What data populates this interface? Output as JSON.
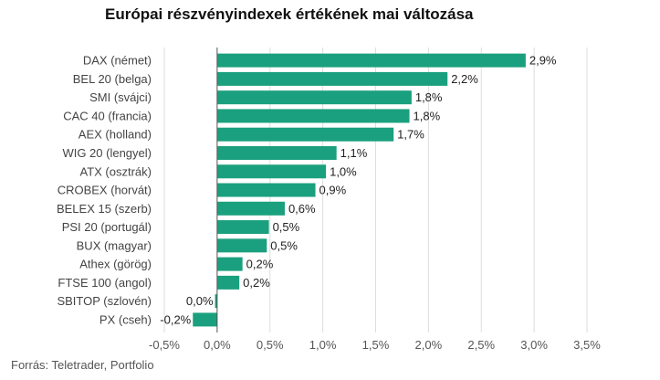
{
  "chart_data": {
    "type": "bar",
    "orientation": "horizontal",
    "title": "Európai részvényindexek értékének mai változása",
    "source": "Forrás: Teletrader, Portfolio",
    "categories": [
      "DAX (német)",
      "BEL 20 (belga)",
      "SMI (svájci)",
      "CAC 40 (francia)",
      "AEX (holland)",
      "WIG 20 (lengyel)",
      "ATX (osztrák)",
      "CROBEX (horvát)",
      "BELEX 15 (szerb)",
      "PSI 20 (portugál)",
      "BUX (magyar)",
      "Athex (görög)",
      "FTSE 100 (angol)",
      "SBITOP (szlovén)",
      "PX (cseh)"
    ],
    "values": [
      2.92,
      2.18,
      1.84,
      1.82,
      1.67,
      1.13,
      1.03,
      0.93,
      0.64,
      0.49,
      0.47,
      0.24,
      0.21,
      -0.02,
      -0.23
    ],
    "data_labels": [
      "2,9%",
      "2,2%",
      "1,8%",
      "1,8%",
      "1,7%",
      "1,1%",
      "1,0%",
      "0,9%",
      "0,6%",
      "0,5%",
      "0,5%",
      "0,2%",
      "0,2%",
      "0,0%",
      "-0,2%"
    ],
    "xlim": [
      -0.5,
      3.5
    ],
    "xticks": [
      -0.5,
      0,
      0.5,
      1,
      1.5,
      2,
      2.5,
      3,
      3.5
    ],
    "xtick_labels": [
      "-0,5%",
      "0,0%",
      "0,5%",
      "1,0%",
      "1,5%",
      "2,0%",
      "2,5%",
      "3,0%",
      "3,5%"
    ],
    "grid": true,
    "bar_color": "#1aa07e",
    "grid_color": "#dddddd",
    "axis_color": "#555555"
  }
}
